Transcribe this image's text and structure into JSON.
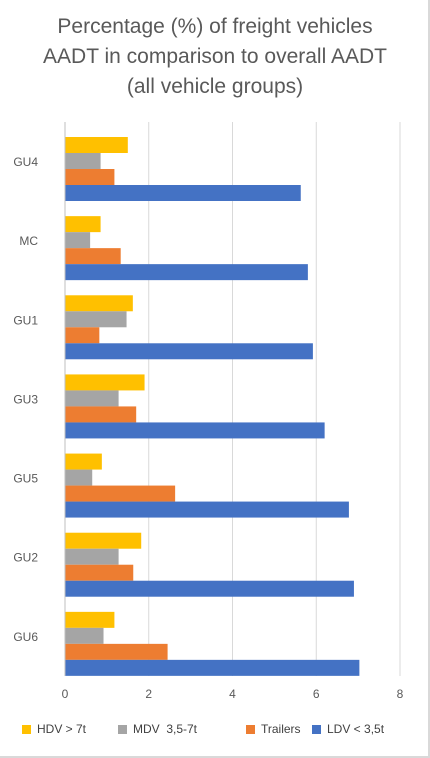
{
  "chart_data": {
    "type": "bar",
    "orientation": "horizontal",
    "title_lines": [
      "Percentage (%) of freight vehicles",
      "AADT in comparison to overall AADT",
      "(all vehicle groups)"
    ],
    "categories": [
      "GU4",
      "MC",
      "GU1",
      "GU3",
      "GU5",
      "GU2",
      "GU6"
    ],
    "series": [
      {
        "name": "HDV > 7t",
        "color": "#ffc000",
        "values": [
          1.5,
          0.85,
          1.62,
          1.9,
          0.88,
          1.82,
          1.18
        ]
      },
      {
        "name": "MDV  3,5-7t",
        "color": "#a5a5a5",
        "values": [
          0.85,
          0.6,
          1.47,
          1.28,
          0.65,
          1.28,
          0.92
        ]
      },
      {
        "name": "Trailers",
        "color": "#ed7d31",
        "values": [
          1.18,
          1.33,
          0.82,
          1.7,
          2.63,
          1.63,
          2.45
        ]
      },
      {
        "name": "LDV < 3,5t",
        "color": "#4472c4",
        "values": [
          5.63,
          5.8,
          5.92,
          6.2,
          6.78,
          6.9,
          7.03
        ]
      }
    ],
    "xlim": [
      0,
      8
    ],
    "xticks": [
      "0",
      "2",
      "4",
      "6",
      "8"
    ],
    "grid": true,
    "legend_position": "bottom"
  }
}
